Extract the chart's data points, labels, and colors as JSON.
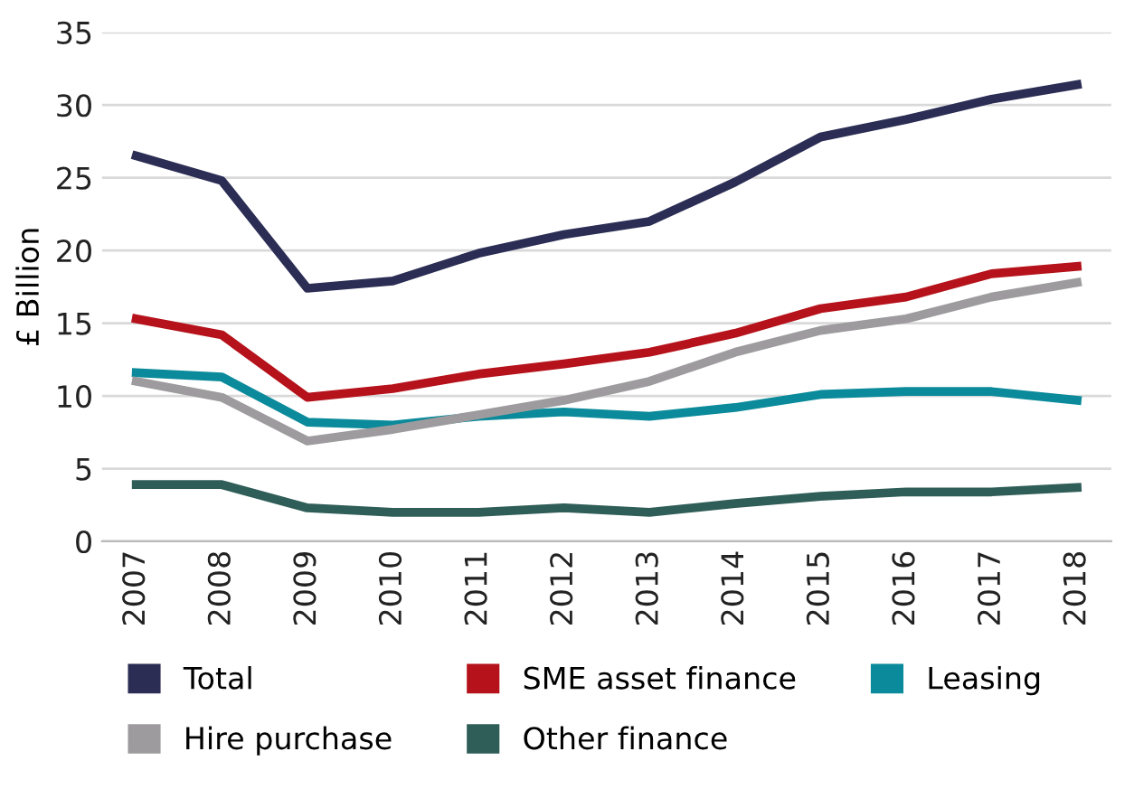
{
  "chart_data": {
    "type": "line",
    "ylabel": "£ Billion",
    "categories": [
      "2007",
      "2008",
      "2009",
      "2010",
      "2011",
      "2012",
      "2013",
      "2014",
      "2015",
      "2016",
      "2017",
      "2018"
    ],
    "series": [
      {
        "name": "Total",
        "color": "#2b2d54",
        "values": [
          26.5,
          24.8,
          17.4,
          17.9,
          19.8,
          21.1,
          22,
          24.7,
          27.8,
          29,
          30.4,
          31.4
        ]
      },
      {
        "name": "SME asset finance",
        "color": "#b5121b",
        "values": [
          15.3,
          14.2,
          9.9,
          10.5,
          11.5,
          12.2,
          13,
          14.3,
          16,
          16.8,
          18.4,
          18.9
        ]
      },
      {
        "name": "Leasing",
        "color": "#0a8a9a",
        "values": [
          11.6,
          11.3,
          8.2,
          8,
          8.6,
          8.9,
          8.6,
          9.2,
          10.1,
          10.3,
          10.3,
          9.7
        ]
      },
      {
        "name": "Hire purchase",
        "color": "#9d9b9e",
        "values": [
          11,
          9.9,
          6.9,
          7.7,
          8.7,
          9.7,
          11,
          13,
          14.5,
          15.3,
          16.8,
          17.8
        ]
      },
      {
        "name": "Other finance",
        "color": "#2f5d57",
        "values": [
          3.9,
          3.9,
          2.3,
          2,
          2,
          2.3,
          2,
          2.6,
          3.1,
          3.4,
          3.4,
          3.7
        ]
      }
    ],
    "ylim": [
      0,
      35
    ],
    "yticks": [
      0,
      5,
      10,
      15,
      20,
      25,
      30,
      35
    ],
    "grid": "y",
    "legend": "bottom",
    "marker": "none",
    "line_style": "solid"
  }
}
